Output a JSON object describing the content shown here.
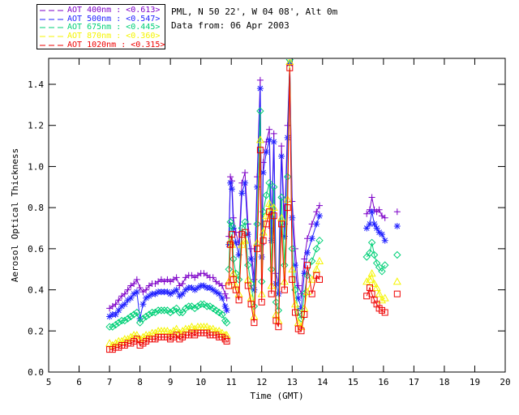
{
  "header": {
    "station": "PML, N 50 22', W 04 08', Alt 0m",
    "date": "Data from: 06 Apr 2003"
  },
  "chart_data": {
    "type": "line",
    "title_lines": [
      "PML, N 50 22', W 04 08', Alt 0m",
      "Data from: 06 Apr 2003"
    ],
    "xlabel": "Time (GMT)",
    "ylabel": "Aerosol Optical Thickness",
    "xlim": [
      5,
      20
    ],
    "ylim": [
      0,
      1.527
    ],
    "xticks": [
      5,
      6,
      7,
      8,
      9,
      10,
      11,
      12,
      13,
      14,
      15,
      16,
      17,
      18,
      19,
      20
    ],
    "yticks": [
      0.0,
      0.2,
      0.4,
      0.6,
      0.8,
      1.0,
      1.2,
      1.4
    ],
    "grid": false,
    "legend_position": "top-left",
    "series": [
      {
        "id": "aot-400nm",
        "name": "AOT 400nm",
        "legend_label": "AOT  400nm",
        "legend_mean": "<0.613>",
        "color": "#7d00c8",
        "marker": "plus"
      },
      {
        "id": "aot-500nm",
        "name": "AOT 500nm",
        "legend_label": "AOT  500nm",
        "legend_mean": "<0.547>",
        "color": "#2222ff",
        "marker": "asterisk"
      },
      {
        "id": "aot-675nm",
        "name": "AOT 675nm",
        "legend_label": "AOT  675nm",
        "legend_mean": "<0.445>",
        "color": "#00d077",
        "marker": "diamond"
      },
      {
        "id": "aot-870nm",
        "name": "AOT 870nm",
        "legend_label": "AOT  870nm",
        "legend_mean": "<0.360>",
        "color": "#f5f500",
        "marker": "triangle"
      },
      {
        "id": "aot-1020nm",
        "name": "AOT 1020nm",
        "legend_label": "AOT 1020nm",
        "legend_mean": "<0.315>",
        "color": "#ee0000",
        "marker": "square"
      }
    ],
    "segments": [
      {
        "t": [
          7.0,
          7.1,
          7.2,
          7.3,
          7.4,
          7.5,
          7.6,
          7.7,
          7.8,
          7.9,
          8.0,
          8.1,
          8.2,
          8.3,
          8.4,
          8.5,
          8.6,
          8.7,
          8.8,
          8.9,
          9.0,
          9.1,
          9.2,
          9.3,
          9.4,
          9.5,
          9.6,
          9.7,
          9.8,
          9.9,
          10.0,
          10.1,
          10.2,
          10.3,
          10.4,
          10.5,
          10.6,
          10.7,
          10.8,
          10.85
        ],
        "values": [
          [
            0.31,
            0.32,
            0.33,
            0.35,
            0.37,
            0.38,
            0.4,
            0.42,
            0.43,
            0.45,
            0.41,
            0.39,
            0.4,
            0.42,
            0.43,
            0.43,
            0.44,
            0.45,
            0.44,
            0.45,
            0.44,
            0.45,
            0.46,
            0.42,
            0.43,
            0.46,
            0.47,
            0.47,
            0.46,
            0.47,
            0.48,
            0.48,
            0.47,
            0.46,
            0.46,
            0.44,
            0.43,
            0.42,
            0.38,
            0.36
          ],
          [
            0.27,
            0.28,
            0.28,
            0.3,
            0.32,
            0.33,
            0.35,
            0.36,
            0.38,
            0.39,
            0.26,
            0.33,
            0.36,
            0.37,
            0.38,
            0.38,
            0.39,
            0.39,
            0.39,
            0.39,
            0.38,
            0.39,
            0.4,
            0.37,
            0.38,
            0.4,
            0.41,
            0.41,
            0.4,
            0.41,
            0.42,
            0.42,
            0.41,
            0.41,
            0.4,
            0.39,
            0.38,
            0.36,
            0.32,
            0.3
          ],
          [
            0.22,
            0.22,
            0.23,
            0.24,
            0.25,
            0.25,
            0.26,
            0.27,
            0.28,
            0.29,
            0.24,
            0.26,
            0.27,
            0.28,
            0.29,
            0.29,
            0.3,
            0.3,
            0.3,
            0.3,
            0.29,
            0.3,
            0.31,
            0.29,
            0.29,
            0.31,
            0.32,
            0.32,
            0.31,
            0.32,
            0.33,
            0.33,
            0.32,
            0.32,
            0.31,
            0.3,
            0.29,
            0.28,
            0.25,
            0.24
          ],
          [
            0.14,
            0.13,
            0.14,
            0.15,
            0.15,
            0.16,
            0.16,
            0.17,
            0.18,
            0.18,
            0.16,
            0.17,
            0.18,
            0.18,
            0.19,
            0.19,
            0.2,
            0.2,
            0.2,
            0.2,
            0.19,
            0.2,
            0.21,
            0.19,
            0.2,
            0.21,
            0.21,
            0.22,
            0.21,
            0.22,
            0.22,
            0.22,
            0.22,
            0.21,
            0.21,
            0.2,
            0.2,
            0.19,
            0.18,
            0.18
          ],
          [
            0.11,
            0.11,
            0.12,
            0.12,
            0.13,
            0.13,
            0.14,
            0.14,
            0.15,
            0.16,
            0.13,
            0.14,
            0.15,
            0.16,
            0.16,
            0.16,
            0.17,
            0.17,
            0.17,
            0.17,
            0.16,
            0.17,
            0.18,
            0.16,
            0.17,
            0.18,
            0.18,
            0.19,
            0.18,
            0.19,
            0.19,
            0.19,
            0.19,
            0.18,
            0.18,
            0.18,
            0.17,
            0.17,
            0.16,
            0.15
          ]
        ]
      },
      {
        "t": [
          10.92,
          10.97,
          11.02,
          11.07,
          11.15,
          11.25,
          11.35,
          11.45,
          11.55,
          11.65,
          11.75,
          11.85,
          11.95,
          12.0,
          12.05,
          12.15,
          12.25,
          12.32,
          12.4,
          12.47,
          12.55,
          12.65,
          12.75,
          12.85,
          12.92,
          13.0,
          13.1,
          13.2,
          13.3,
          13.4,
          13.5,
          13.65,
          13.8,
          13.9
        ],
        "values": [
          [
            0.66,
            0.95,
            0.93,
            0.75,
            0.68,
            0.62,
            0.92,
            0.97,
            0.72,
            0.6,
            0.45,
            0.95,
            1.42,
            0.62,
            1.02,
            1.12,
            1.18,
            0.7,
            1.16,
            0.48,
            0.43,
            1.1,
            0.72,
            1.2,
            1.5,
            0.83,
            0.6,
            0.42,
            0.38,
            0.55,
            0.65,
            0.72,
            0.78,
            0.81
          ],
          [
            0.62,
            0.92,
            0.89,
            0.7,
            0.63,
            0.57,
            0.87,
            0.92,
            0.67,
            0.55,
            0.4,
            0.9,
            1.38,
            0.56,
            0.97,
            1.07,
            1.13,
            0.64,
            1.12,
            0.43,
            0.38,
            1.05,
            0.66,
            1.14,
            1.5,
            0.75,
            0.52,
            0.36,
            0.31,
            0.48,
            0.58,
            0.65,
            0.72,
            0.76
          ],
          [
            0.5,
            0.73,
            0.71,
            0.55,
            0.48,
            0.45,
            0.7,
            0.73,
            0.52,
            0.43,
            0.32,
            0.72,
            1.27,
            0.44,
            0.78,
            0.86,
            0.92,
            0.5,
            0.9,
            0.34,
            0.3,
            0.85,
            0.52,
            0.95,
            1.52,
            0.6,
            0.4,
            0.29,
            0.26,
            0.38,
            0.47,
            0.54,
            0.6,
            0.64
          ],
          [
            0.44,
            0.64,
            0.62,
            0.48,
            0.42,
            0.38,
            0.62,
            0.64,
            0.45,
            0.36,
            0.27,
            0.63,
            1.13,
            0.38,
            0.68,
            0.76,
            0.82,
            0.42,
            0.8,
            0.28,
            0.25,
            0.75,
            0.44,
            0.84,
            1.51,
            0.5,
            0.33,
            0.24,
            0.22,
            0.31,
            0.39,
            0.45,
            0.5,
            0.54
          ],
          [
            0.42,
            0.62,
            0.67,
            0.45,
            0.4,
            0.35,
            0.67,
            0.68,
            0.42,
            0.33,
            0.24,
            0.6,
            1.08,
            0.34,
            0.64,
            0.72,
            0.78,
            0.38,
            0.76,
            0.25,
            0.22,
            0.72,
            0.4,
            0.8,
            1.48,
            0.45,
            0.29,
            0.21,
            0.2,
            0.28,
            0.52,
            0.38,
            0.47,
            0.45
          ]
        ]
      },
      {
        "t": [
          15.45,
          15.55,
          15.62,
          15.7,
          15.78,
          15.86,
          15.95,
          16.05
        ],
        "values": [
          [
            0.77,
            0.79,
            0.85,
            0.79,
            0.78,
            0.79,
            0.76,
            0.75
          ],
          [
            0.7,
            0.72,
            0.78,
            0.72,
            0.7,
            0.68,
            0.67,
            0.64
          ],
          [
            0.56,
            0.58,
            0.63,
            0.57,
            0.53,
            0.51,
            0.49,
            0.52
          ],
          [
            0.44,
            0.45,
            0.48,
            0.43,
            0.41,
            0.38,
            0.35,
            0.36
          ],
          [
            0.37,
            0.41,
            0.38,
            0.35,
            0.33,
            0.31,
            0.3,
            0.29
          ]
        ]
      },
      {
        "t": [
          16.45
        ],
        "values": [
          [
            0.78
          ],
          [
            0.71
          ],
          [
            0.57
          ],
          [
            0.44
          ],
          [
            0.38
          ]
        ]
      }
    ]
  }
}
